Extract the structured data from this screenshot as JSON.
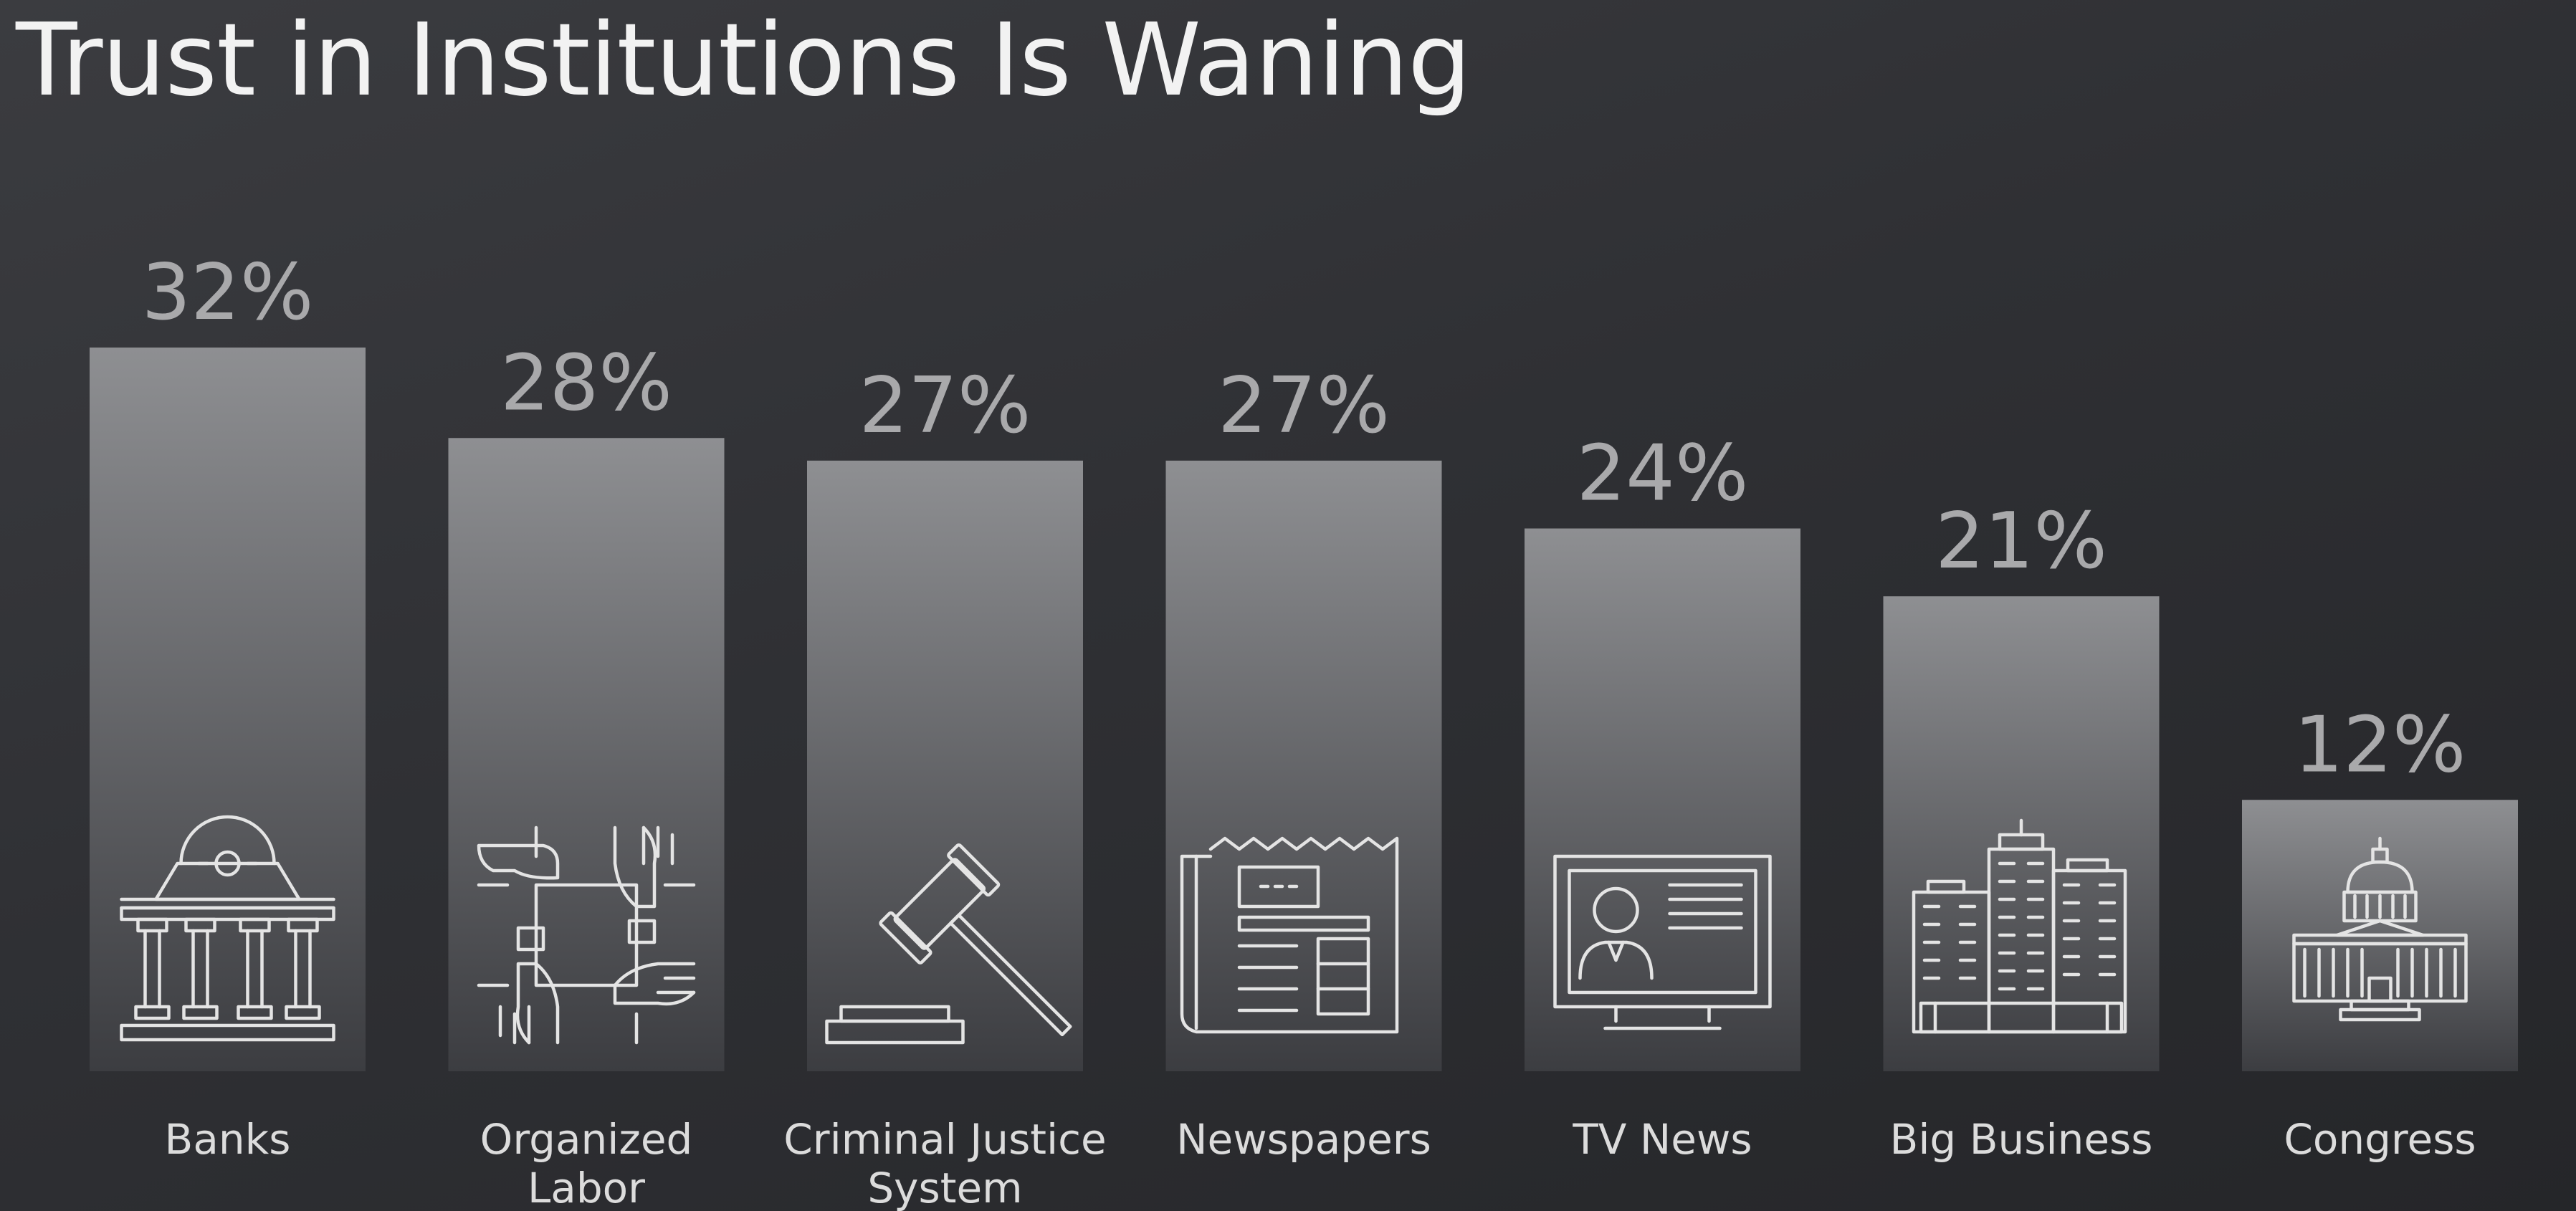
{
  "title": "Trust in Institutions Is Waning",
  "chart_data": {
    "type": "bar",
    "title": "Trust in Institutions Is Waning",
    "categories": [
      "Banks",
      "Organized Labor",
      "Criminal Justice System",
      "Newspapers",
      "TV News",
      "Big Business",
      "Congress"
    ],
    "category_lines": [
      [
        "Banks"
      ],
      [
        "Organized",
        "Labor"
      ],
      [
        "Criminal Justice",
        "System"
      ],
      [
        "Newspapers"
      ],
      [
        "TV News"
      ],
      [
        "Big Business"
      ],
      [
        "Congress"
      ]
    ],
    "values": [
      32,
      28,
      27,
      27,
      24,
      21,
      12
    ],
    "value_labels": [
      "32%",
      "28%",
      "27%",
      "27%",
      "24%",
      "21%",
      "12%"
    ],
    "icons": [
      "bank-icon",
      "joined-hands-icon",
      "gavel-icon",
      "newspaper-icon",
      "tv-news-icon",
      "office-buildings-icon",
      "capitol-building-icon"
    ],
    "unit": "%",
    "xlabel": "",
    "ylabel": "",
    "ylim": [
      0,
      32
    ],
    "grid": false,
    "legend": "none",
    "colors": {
      "bar_top": "#8e8f92",
      "bar_bottom": "#3c3d41",
      "value_text": "#a9a9ab",
      "label_text": "#dcdcdc"
    }
  }
}
